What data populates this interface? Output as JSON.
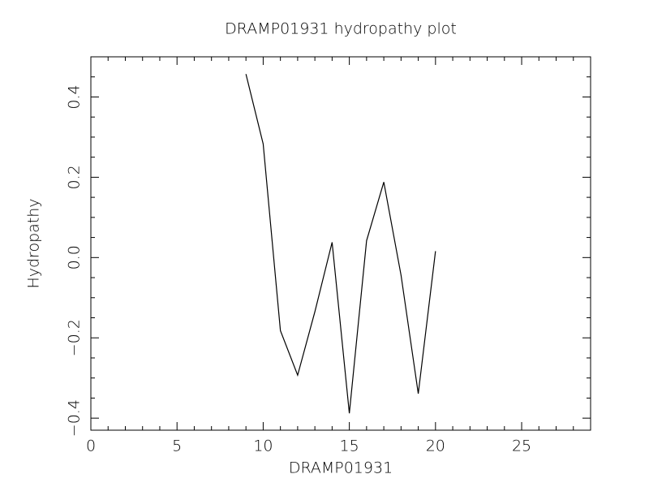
{
  "chart_data": {
    "type": "line",
    "title": "DRAMP01931 hydropathy plot",
    "x_label": "DRAMP01931",
    "y_label": "Hydropathy",
    "x": [
      9,
      10,
      11,
      12,
      13,
      14,
      15,
      16,
      17,
      18,
      19,
      20
    ],
    "values": [
      0.457,
      0.283,
      -0.182,
      -0.293,
      -0.135,
      0.038,
      -0.388,
      0.042,
      0.188,
      -0.044,
      -0.339,
      0.016
    ],
    "color": "#000000",
    "xlim": [
      0,
      29
    ],
    "xticks": [
      0,
      5,
      10,
      15,
      20,
      25
    ],
    "ylim": [
      -0.43,
      0.5
    ],
    "yticks": [
      {
        "value": -0.4,
        "label": "−0.4"
      },
      {
        "value": -0.2,
        "label": "−0.2"
      },
      {
        "value": 0,
        "label": "0.0"
      },
      0.2,
      0.4
    ]
  }
}
